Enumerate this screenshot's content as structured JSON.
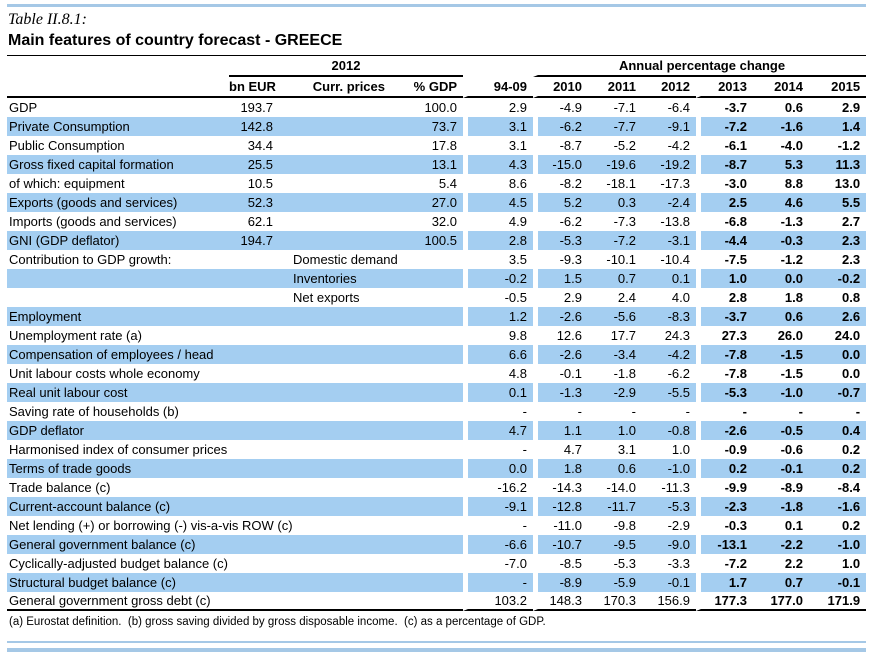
{
  "page": {
    "title": "Table II.8.1:",
    "subtitle": "Main features of country forecast - GREECE",
    "footnote": "(a) Eurostat definition.  (b) gross saving divided by gross disposable income.  (c) as a percentage of GDP."
  },
  "colors": {
    "row_blue": "#a4cef1",
    "rule_blue": "#a5c8e6"
  },
  "table": {
    "group_2012": "2012",
    "group_annual": "Annual percentage change",
    "columns": [
      "bn EUR",
      "Curr. prices",
      "% GDP",
      "94-09",
      "2010",
      "2011",
      "2012",
      "2013",
      "2014",
      "2015"
    ],
    "rows": [
      {
        "label": "GDP",
        "sub": "",
        "bn": "193.7",
        "gdp": "100.0",
        "v": [
          "2.9",
          "-4.9",
          "-7.1",
          "-6.4",
          "-3.7",
          "0.6",
          "2.9"
        ]
      },
      {
        "label": "Private Consumption",
        "sub": "",
        "bn": "142.8",
        "gdp": "73.7",
        "v": [
          "3.1",
          "-6.2",
          "-7.7",
          "-9.1",
          "-7.2",
          "-1.6",
          "1.4"
        ]
      },
      {
        "label": "Public Consumption",
        "sub": "",
        "bn": "34.4",
        "gdp": "17.8",
        "v": [
          "3.1",
          "-8.7",
          "-5.2",
          "-4.2",
          "-6.1",
          "-4.0",
          "-1.2"
        ]
      },
      {
        "label": "Gross fixed capital formation",
        "sub": "",
        "bn": "25.5",
        "gdp": "13.1",
        "v": [
          "4.3",
          "-15.0",
          "-19.6",
          "-19.2",
          "-8.7",
          "5.3",
          "11.3"
        ]
      },
      {
        "label": "of which: equipment",
        "sub": "",
        "bn": "10.5",
        "gdp": "5.4",
        "v": [
          "8.6",
          "-8.2",
          "-18.1",
          "-17.3",
          "-3.0",
          "8.8",
          "13.0"
        ]
      },
      {
        "label": "Exports (goods and services)",
        "sub": "",
        "bn": "52.3",
        "gdp": "27.0",
        "v": [
          "4.5",
          "5.2",
          "0.3",
          "-2.4",
          "2.5",
          "4.6",
          "5.5"
        ]
      },
      {
        "label": "Imports (goods and services)",
        "sub": "",
        "bn": "62.1",
        "gdp": "32.0",
        "v": [
          "4.9",
          "-6.2",
          "-7.3",
          "-13.8",
          "-6.8",
          "-1.3",
          "2.7"
        ]
      },
      {
        "label": "GNI (GDP deflator)",
        "sub": "",
        "bn": "194.7",
        "gdp": "100.5",
        "v": [
          "2.8",
          "-5.3",
          "-7.2",
          "-3.1",
          "-4.4",
          "-0.3",
          "2.3"
        ]
      },
      {
        "label": "Contribution to GDP growth:",
        "sub": "Domestic demand",
        "bn": "",
        "gdp": "",
        "v": [
          "3.5",
          "-9.3",
          "-10.1",
          "-10.4",
          "-7.5",
          "-1.2",
          "2.3"
        ]
      },
      {
        "label": "",
        "sub": "Inventories",
        "bn": "",
        "gdp": "",
        "v": [
          "-0.2",
          "1.5",
          "0.7",
          "0.1",
          "1.0",
          "0.0",
          "-0.2"
        ]
      },
      {
        "label": "",
        "sub": "Net exports",
        "bn": "",
        "gdp": "",
        "v": [
          "-0.5",
          "2.9",
          "2.4",
          "4.0",
          "2.8",
          "1.8",
          "0.8"
        ]
      },
      {
        "label": "Employment",
        "sub": "",
        "bn": "",
        "gdp": "",
        "v": [
          "1.2",
          "-2.6",
          "-5.6",
          "-8.3",
          "-3.7",
          "0.6",
          "2.6"
        ]
      },
      {
        "label": "Unemployment rate (a)",
        "sub": "",
        "bn": "",
        "gdp": "",
        "v": [
          "9.8",
          "12.6",
          "17.7",
          "24.3",
          "27.3",
          "26.0",
          "24.0"
        ]
      },
      {
        "label": "Compensation of employees / head",
        "sub": "",
        "bn": "",
        "gdp": "",
        "v": [
          "6.6",
          "-2.6",
          "-3.4",
          "-4.2",
          "-7.8",
          "-1.5",
          "0.0"
        ]
      },
      {
        "label": "Unit labour costs whole economy",
        "sub": "",
        "bn": "",
        "gdp": "",
        "v": [
          "4.8",
          "-0.1",
          "-1.8",
          "-6.2",
          "-7.8",
          "-1.5",
          "0.0"
        ]
      },
      {
        "label": "Real unit labour cost",
        "sub": "",
        "bn": "",
        "gdp": "",
        "v": [
          "0.1",
          "-1.3",
          "-2.9",
          "-5.5",
          "-5.3",
          "-1.0",
          "-0.7"
        ]
      },
      {
        "label": "Saving rate of households (b)",
        "sub": "",
        "bn": "",
        "gdp": "",
        "v": [
          "-",
          "-",
          "-",
          "-",
          "-",
          "-",
          "-"
        ]
      },
      {
        "label": "GDP deflator",
        "sub": "",
        "bn": "",
        "gdp": "",
        "v": [
          "4.7",
          "1.1",
          "1.0",
          "-0.8",
          "-2.6",
          "-0.5",
          "0.4"
        ]
      },
      {
        "label": "Harmonised index of consumer prices",
        "sub": "",
        "bn": "",
        "gdp": "",
        "v": [
          "-",
          "4.7",
          "3.1",
          "1.0",
          "-0.9",
          "-0.6",
          "0.2"
        ]
      },
      {
        "label": "Terms of trade goods",
        "sub": "",
        "bn": "",
        "gdp": "",
        "v": [
          "0.0",
          "1.8",
          "0.6",
          "-1.0",
          "0.2",
          "-0.1",
          "0.2"
        ]
      },
      {
        "label": "Trade balance (c)",
        "sub": "",
        "bn": "",
        "gdp": "",
        "v": [
          "-16.2",
          "-14.3",
          "-14.0",
          "-11.3",
          "-9.9",
          "-8.9",
          "-8.4"
        ]
      },
      {
        "label": "Current-account balance (c)",
        "sub": "",
        "bn": "",
        "gdp": "",
        "v": [
          "-9.1",
          "-12.8",
          "-11.7",
          "-5.3",
          "-2.3",
          "-1.8",
          "-1.6"
        ]
      },
      {
        "label": "Net lending (+) or borrowing (-) vis-a-vis ROW (c)",
        "sub": "",
        "bn": "",
        "gdp": "",
        "v": [
          "-",
          "-11.0",
          "-9.8",
          "-2.9",
          "-0.3",
          "0.1",
          "0.2"
        ]
      },
      {
        "label": "General government balance (c)",
        "sub": "",
        "bn": "",
        "gdp": "",
        "v": [
          "-6.6",
          "-10.7",
          "-9.5",
          "-9.0",
          "-13.1",
          "-2.2",
          "-1.0"
        ]
      },
      {
        "label": "Cyclically-adjusted budget balance (c)",
        "sub": "",
        "bn": "",
        "gdp": "",
        "v": [
          "-7.0",
          "-8.5",
          "-5.3",
          "-3.3",
          "-7.2",
          "2.2",
          "1.0"
        ]
      },
      {
        "label": "Structural budget balance (c)",
        "sub": "",
        "bn": "",
        "gdp": "",
        "v": [
          "-",
          "-8.9",
          "-5.9",
          "-0.1",
          "1.7",
          "0.7",
          "-0.1"
        ]
      },
      {
        "label": "General government gross debt (c)",
        "sub": "",
        "bn": "",
        "gdp": "",
        "v": [
          "103.2",
          "148.3",
          "170.3",
          "156.9",
          "177.3",
          "177.0",
          "171.9"
        ]
      }
    ]
  }
}
